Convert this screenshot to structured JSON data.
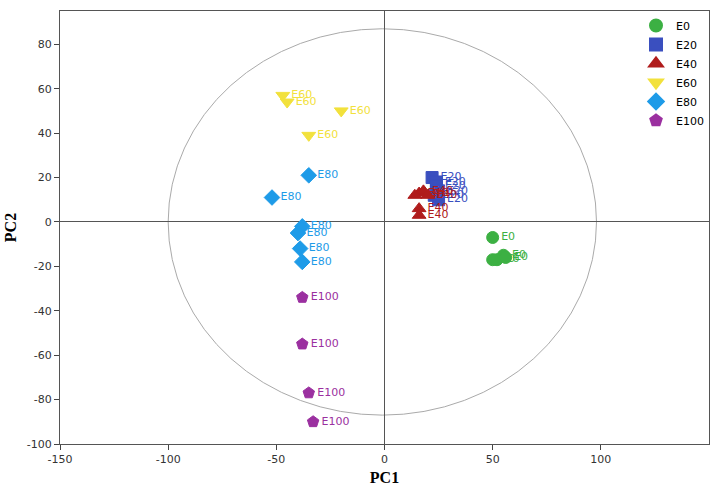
{
  "chart_data": {
    "type": "scatter",
    "x_label": "PC1",
    "y_label": "PC2",
    "xlim": [
      -150,
      150
    ],
    "ylim": [
      -100,
      95
    ],
    "xticks": [
      -150,
      -100,
      -50,
      0,
      50,
      100
    ],
    "yticks": [
      -100,
      -80,
      -60,
      -40,
      -20,
      0,
      20,
      40,
      60,
      80
    ],
    "grid": false,
    "legend": "upper right",
    "ellipse": {
      "x": [
        -100,
        98
      ],
      "y": [
        -87,
        87
      ]
    },
    "series": [
      {
        "name": "E0",
        "color": "#3cb043",
        "marker": "circle",
        "x": [
          50,
          55,
          52,
          50,
          56
        ],
        "values": [
          -7,
          -15,
          -17,
          -17,
          -16
        ]
      },
      {
        "name": "E20",
        "color": "#3a4fbf",
        "marker": "square",
        "x": [
          22,
          24,
          24,
          25,
          23,
          25
        ],
        "values": [
          20,
          18,
          16,
          14,
          12,
          10
        ]
      },
      {
        "name": "E40",
        "color": "#b01c1c",
        "marker": "triangle-up",
        "x": [
          16,
          18,
          14,
          20,
          16,
          16
        ],
        "values": [
          13,
          14,
          12,
          12,
          6,
          3
        ]
      },
      {
        "name": "E60",
        "color": "#f2e13c",
        "marker": "triangle-down",
        "x": [
          -47,
          -45,
          -20,
          -35
        ],
        "values": [
          57,
          54,
          50,
          39
        ]
      },
      {
        "name": "E80",
        "color": "#1e9be8",
        "marker": "diamond",
        "x": [
          -35,
          -52,
          -38,
          -40,
          -39,
          -38
        ],
        "values": [
          21,
          11,
          -2,
          -5,
          -12,
          -18
        ]
      },
      {
        "name": "E100",
        "color": "#9b30a0",
        "marker": "pentagon",
        "x": [
          -38,
          -38,
          -35,
          -33
        ],
        "values": [
          -34,
          -55,
          -77,
          -90
        ]
      }
    ]
  }
}
